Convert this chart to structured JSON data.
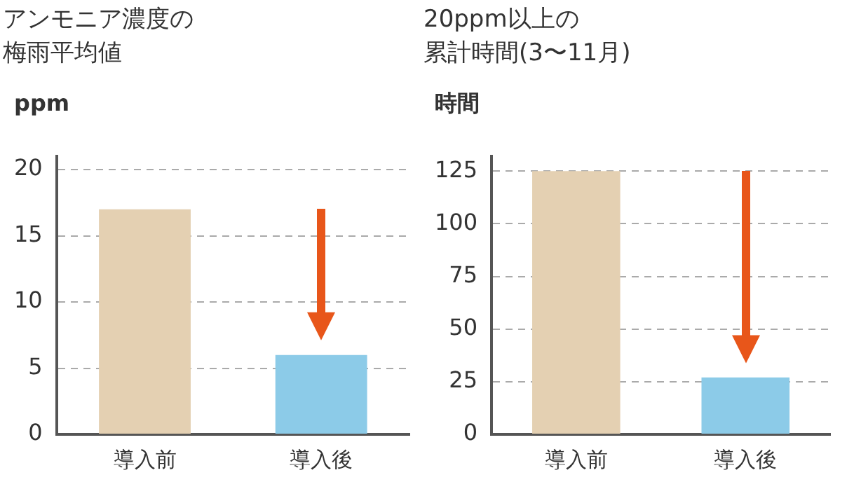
{
  "chart_data": [
    {
      "type": "bar",
      "title": "アンモニア濃度の梅雨平均値",
      "ylabel": "ppm",
      "categories": [
        "導入前",
        "導入後"
      ],
      "values": [
        17,
        6
      ],
      "colors": [
        "#e4d0b2",
        "#8ccbe8"
      ],
      "ylim": [
        0,
        21
      ],
      "yticks": [
        0,
        5,
        10,
        15,
        20
      ],
      "grid": "y"
    },
    {
      "type": "bar",
      "title": "20ppm以上の累計時間(3〜11月)",
      "ylabel": "時間",
      "categories": [
        "導入前",
        "導入後"
      ],
      "values": [
        125,
        27
      ],
      "colors": [
        "#e4d0b2",
        "#8ccbe8"
      ],
      "ylim": [
        0,
        132
      ],
      "yticks": [
        0,
        25,
        50,
        75,
        100,
        125
      ],
      "grid": "y"
    }
  ]
}
